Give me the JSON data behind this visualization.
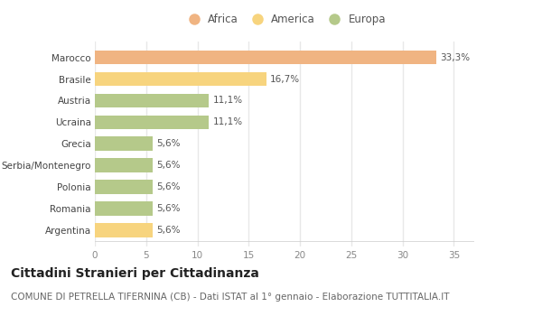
{
  "categories": [
    "Argentina",
    "Romania",
    "Polonia",
    "Serbia/Montenegro",
    "Grecia",
    "Ucraina",
    "Austria",
    "Brasile",
    "Marocco"
  ],
  "values": [
    5.6,
    5.6,
    5.6,
    5.6,
    5.6,
    11.1,
    11.1,
    16.7,
    33.3
  ],
  "labels": [
    "5,6%",
    "5,6%",
    "5,6%",
    "5,6%",
    "5,6%",
    "11,1%",
    "11,1%",
    "16,7%",
    "33,3%"
  ],
  "colors": [
    "#f7d47e",
    "#b5c98a",
    "#b5c98a",
    "#b5c98a",
    "#b5c98a",
    "#b5c98a",
    "#b5c98a",
    "#f7d47e",
    "#f0b482"
  ],
  "legend_items": [
    {
      "label": "Africa",
      "color": "#f0b482"
    },
    {
      "label": "America",
      "color": "#f7d47e"
    },
    {
      "label": "Europa",
      "color": "#b5c98a"
    }
  ],
  "xlim": [
    0,
    37
  ],
  "xticks": [
    0,
    5,
    10,
    15,
    20,
    25,
    30,
    35
  ],
  "title": "Cittadini Stranieri per Cittadinanza",
  "subtitle": "COMUNE DI PETRELLA TIFERNINA (CB) - Dati ISTAT al 1° gennaio - Elaborazione TUTTITALIA.IT",
  "bg_color": "#ffffff",
  "grid_color": "#e8e8e8",
  "title_fontsize": 10,
  "subtitle_fontsize": 7.5,
  "label_fontsize": 7.5,
  "tick_fontsize": 7.5,
  "legend_fontsize": 8.5,
  "ytick_fontsize": 7.5
}
